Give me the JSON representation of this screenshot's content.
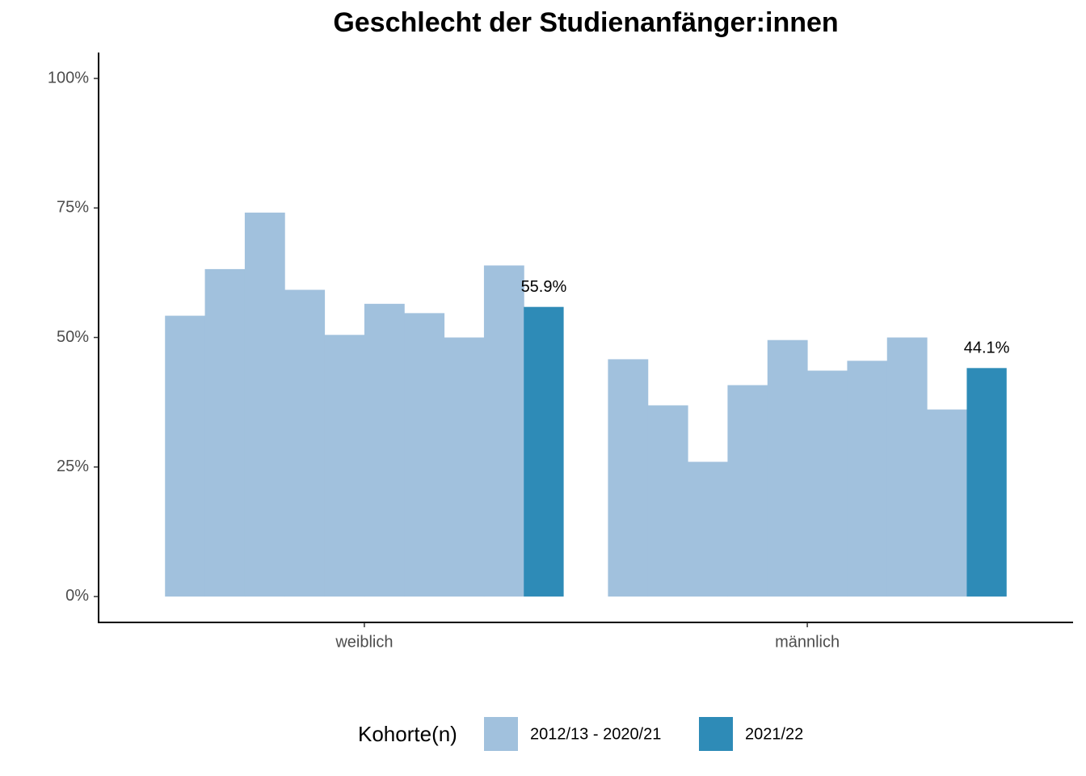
{
  "chart_data": {
    "type": "bar",
    "title": "Geschlecht der Studienanfänger:innen",
    "legend_title": "Kohorte(n)",
    "categories": [
      "weiblich",
      "männlich"
    ],
    "series": [
      {
        "name": "2012/13 - 2020/21",
        "color": "#a1c1dd",
        "values": [
          [
            54.2,
            63.2,
            74.1,
            59.2,
            50.5,
            56.5,
            54.7,
            50.0,
            63.9
          ],
          [
            45.8,
            36.9,
            26.0,
            40.8,
            49.5,
            43.6,
            45.5,
            50.0,
            36.1
          ]
        ]
      },
      {
        "name": "2021/22",
        "color": "#2e8bb7",
        "values": [
          55.9,
          44.1
        ],
        "value_labels": [
          "55.9%",
          "44.1%"
        ]
      }
    ],
    "ylim": [
      -5,
      105
    ],
    "yticks": [
      {
        "value": 0,
        "label": "0%"
      },
      {
        "value": 25,
        "label": "25%"
      },
      {
        "value": 50,
        "label": "50%"
      },
      {
        "value": 75,
        "label": "75%"
      },
      {
        "value": 100,
        "label": "100%"
      }
    ],
    "legend_position": "bottom"
  }
}
